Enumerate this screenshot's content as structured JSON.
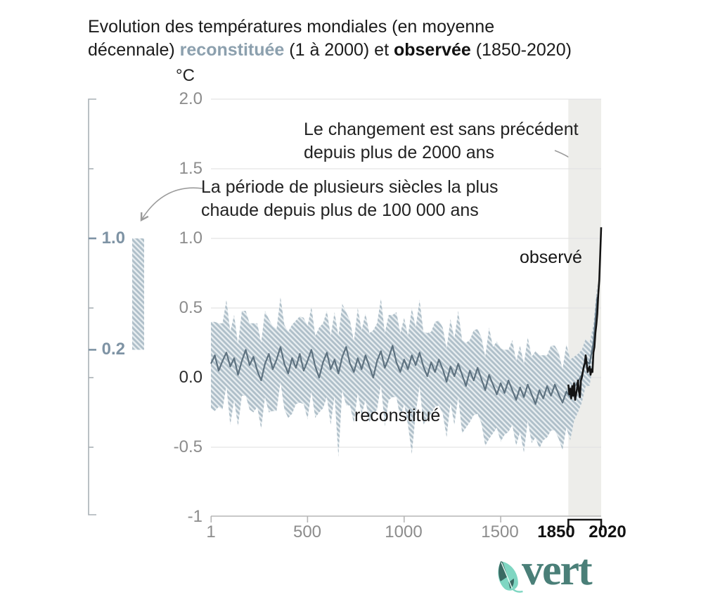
{
  "title": {
    "line1": "Evolution des températures mondiales (en moyenne",
    "line2_pre": "décennale) ",
    "line2_recon": "reconstituée",
    "line2_mid": " (1 à 2000) et ",
    "line2_obs": "observée",
    "line2_post": " (1850-2020)"
  },
  "annotations": {
    "unprecedented": {
      "line1": "Le changement est sans précédent",
      "line2": "depuis plus de 2000 ans"
    },
    "warm_period": {
      "line1": "La période de plusieurs siècles la plus",
      "line2": "chaude depuis plus de 100 000 ans"
    }
  },
  "labels": {
    "y_unit": "°C",
    "observed": "observé",
    "reconstructed": "reconstitué"
  },
  "left_scale": {
    "top_label": "1.0",
    "bottom_label": "0.2"
  },
  "logo": {
    "text": "vert"
  },
  "colors": {
    "accent_blue": "#7E93A4",
    "recon_title_blue": "#8CA0AE",
    "observed_black": "#141414",
    "recon_line": "#5E7280",
    "band_stripe": "#AFBFC9",
    "band_gap": "#E7EDF0",
    "highlight_band": "#EDEDEA",
    "grid": "#E3E3E3",
    "axis_gray": "#B5B5B5",
    "ruler_gray": "#A9B0B5",
    "arrow_gray": "#9B9B9B",
    "brand_teal": "#4A7F78",
    "leaf_mint": "#7FD6C2",
    "leaf_dark": "#3A6A63"
  },
  "chart_data": {
    "type": "line",
    "title": "Evolution des températures mondiales (en moyenne décennale) reconstituée (1 à 2000) et observée (1850-2020)",
    "xlabel": "",
    "ylabel": "°C",
    "grid": "horizontal",
    "x_range": [
      0,
      2020
    ],
    "y_range": [
      -1,
      2
    ],
    "y_ticks": [
      "2.0",
      "1.5",
      "1.0",
      "0.5",
      "0.0",
      "-0.5",
      "-1"
    ],
    "y_tick_values": [
      2,
      1.5,
      1,
      0.5,
      0,
      -0.5,
      -1
    ],
    "x_ticks": [
      "1",
      "500",
      "1000",
      "1500"
    ],
    "x_tick_values": [
      1,
      500,
      1000,
      1500
    ],
    "x_bold_ticks": [
      "1850",
      "2020"
    ],
    "x_bold_tick_values": [
      1850,
      2020
    ],
    "highlight_span": [
      1850,
      2020
    ],
    "left_scale_marks": [
      1.0,
      0.2
    ],
    "series": [
      {
        "name": "reconstitué",
        "role": "median",
        "x_start": 0,
        "x_step": 20,
        "values": [
          0.1,
          0.16,
          0.05,
          0.12,
          0.18,
          0.08,
          0.14,
          0.02,
          0.12,
          0.2,
          0.09,
          0.15,
          0.05,
          -0.02,
          0.1,
          0.17,
          0.06,
          0.13,
          0.22,
          0.1,
          0.03,
          0.14,
          0.07,
          0.17,
          0.05,
          0.12,
          0.2,
          0.08,
          0.0,
          0.11,
          0.18,
          0.06,
          0.13,
          0.03,
          0.15,
          0.22,
          0.1,
          0.04,
          0.14,
          0.06,
          0.16,
          0.08,
          0.0,
          0.12,
          0.19,
          0.07,
          0.14,
          0.23,
          0.11,
          0.04,
          0.13,
          0.06,
          0.16,
          0.09,
          0.18,
          0.08,
          0.01,
          0.11,
          0.04,
          0.13,
          0.06,
          -0.03,
          0.08,
          0.01,
          0.1,
          0.02,
          -0.06,
          0.05,
          -0.02,
          0.07,
          -0.01,
          -0.09,
          0.02,
          -0.05,
          -0.12,
          -0.04,
          -0.11,
          -0.02,
          -0.09,
          -0.16,
          -0.07,
          -0.14,
          -0.05,
          -0.12,
          -0.19,
          -0.09,
          -0.15,
          -0.06,
          -0.13,
          -0.05,
          -0.12,
          -0.18,
          -0.1,
          -0.14,
          -0.07,
          -0.03,
          0.02,
          0.12,
          0.1,
          0.25,
          0.58
        ]
      },
      {
        "name": "reconstitué (incertitude)",
        "role": "band",
        "x_start": 0,
        "x_step": 20,
        "upper": [
          0.4,
          0.4,
          0.39,
          0.39,
          0.56,
          0.33,
          0.45,
          0.24,
          0.48,
          0.48,
          0.39,
          0.39,
          0.39,
          0.25,
          0.48,
          0.42,
          0.37,
          0.35,
          0.58,
          0.38,
          0.33,
          0.38,
          0.41,
          0.44,
          0.43,
          0.37,
          0.51,
          0.3,
          0.36,
          0.39,
          0.48,
          0.3,
          0.47,
          0.3,
          0.53,
          0.47,
          0.41,
          0.26,
          0.5,
          0.34,
          0.46,
          0.32,
          0.34,
          0.39,
          0.57,
          0.32,
          0.45,
          0.45,
          0.47,
          0.32,
          0.43,
          0.3,
          0.5,
          0.36,
          0.56,
          0.33,
          0.32,
          0.33,
          0.4,
          0.41,
          0.36,
          0.21,
          0.42,
          0.28,
          0.48,
          0.27,
          0.25,
          0.27,
          0.34,
          0.35,
          0.29,
          0.15,
          0.36,
          0.22,
          0.26,
          0.21,
          0.2,
          0.2,
          0.27,
          0.12,
          0.23,
          0.1,
          0.29,
          0.15,
          0.19,
          0.16,
          0.16,
          0.16,
          0.23,
          0.23,
          0.18,
          0.06,
          0.24,
          0.13,
          0.15,
          0.17,
          0.2,
          0.28,
          0.25,
          0.38,
          0.68
        ],
        "lower": [
          -0.22,
          -0.24,
          -0.21,
          -0.23,
          -0.06,
          -0.34,
          -0.16,
          -0.35,
          -0.13,
          -0.13,
          -0.23,
          -0.25,
          -0.21,
          -0.37,
          -0.14,
          -0.25,
          -0.24,
          -0.24,
          -0.03,
          -0.23,
          -0.29,
          -0.26,
          -0.19,
          -0.18,
          -0.19,
          -0.3,
          -0.1,
          -0.29,
          -0.25,
          -0.22,
          -0.14,
          -0.34,
          -0.13,
          -0.57,
          -0.09,
          -0.2,
          -0.2,
          -0.33,
          -0.11,
          -0.27,
          -0.16,
          -0.32,
          -0.26,
          -0.23,
          -0.05,
          -0.35,
          -0.16,
          -0.14,
          -0.14,
          -0.29,
          -0.19,
          -0.34,
          -0.55,
          -0.26,
          -0.06,
          -0.34,
          -0.29,
          -0.26,
          -0.21,
          -0.2,
          -0.26,
          -0.43,
          -0.18,
          -0.34,
          -0.14,
          -0.4,
          -0.36,
          -0.32,
          -0.27,
          -0.26,
          -0.33,
          -0.49,
          -0.44,
          -0.4,
          -0.36,
          -0.46,
          -0.41,
          -0.39,
          -0.34,
          -0.49,
          -0.39,
          -0.54,
          -0.31,
          -0.47,
          -0.43,
          -0.51,
          -0.45,
          -0.43,
          -0.38,
          -0.38,
          -0.44,
          -0.52,
          -0.36,
          -0.45,
          -0.31,
          -0.25,
          -0.18,
          -0.06,
          -0.06,
          0.11,
          0.46
        ]
      },
      {
        "name": "observé",
        "role": "line",
        "x_start": 1850,
        "x_step": 5,
        "values": [
          -0.05,
          -0.12,
          -0.08,
          -0.15,
          -0.06,
          -0.13,
          -0.04,
          -0.16,
          -0.12,
          -0.08,
          -0.02,
          -0.1,
          -0.14,
          -0.02,
          0.0,
          0.04,
          0.08,
          0.1,
          0.16,
          0.1,
          0.04,
          0.06,
          0.08,
          0.02,
          0.06,
          0.04,
          0.18,
          0.22,
          0.32,
          0.38,
          0.46,
          0.6,
          0.7,
          0.88,
          1.08
        ]
      }
    ]
  }
}
